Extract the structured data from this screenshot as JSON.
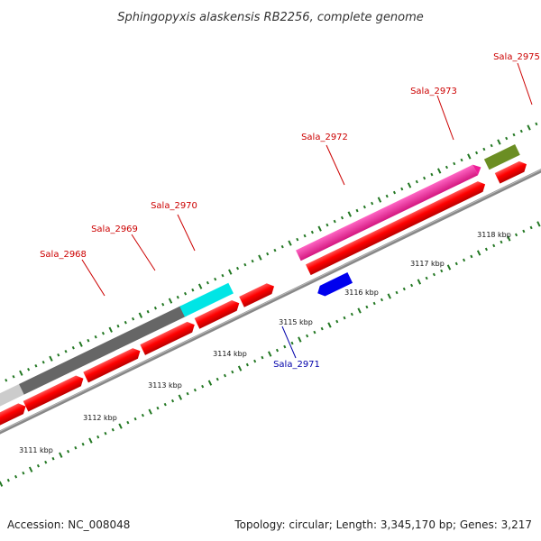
{
  "title": "Sphingopyxis alaskensis RB2256, complete genome",
  "accession": "Accession: NC_008048",
  "topology": "Topology: circular; Length: 3,345,170 bp; Genes: 3,217",
  "colors": {
    "forward_label": "#cc0000",
    "reverse_label": "#0000aa",
    "tick": "#227722",
    "backbone": "#777777"
  },
  "kbp_labels": [
    "3111 kbp",
    "3112 kbp",
    "3113 kbp",
    "3114 kbp",
    "3115 kbp",
    "3116 kbp",
    "3117 kbp",
    "3118 kbp"
  ],
  "genes": [
    {
      "id": "Sala_2968",
      "strand": "forward",
      "feature_color": "#666666",
      "label_color": "#cc0000"
    },
    {
      "id": "Sala_2969",
      "strand": "forward",
      "feature_color": "#00e5e5",
      "label_color": "#cc0000"
    },
    {
      "id": "Sala_2970",
      "strand": "forward",
      "feature_color": "#ff0000",
      "label_color": "#cc0000"
    },
    {
      "id": "Sala_2971",
      "strand": "reverse",
      "feature_color": "#0000ee",
      "label_color": "#0000aa"
    },
    {
      "id": "Sala_2972",
      "strand": "forward",
      "feature_color": "#ee1c96",
      "label_color": "#cc0000"
    },
    {
      "id": "Sala_2973",
      "strand": "forward",
      "feature_color": "#6b8e23",
      "label_color": "#cc0000"
    },
    {
      "id": "Sala_2975",
      "strand": "forward",
      "feature_color": "#bdb76b",
      "label_color": "#cc0000"
    }
  ]
}
